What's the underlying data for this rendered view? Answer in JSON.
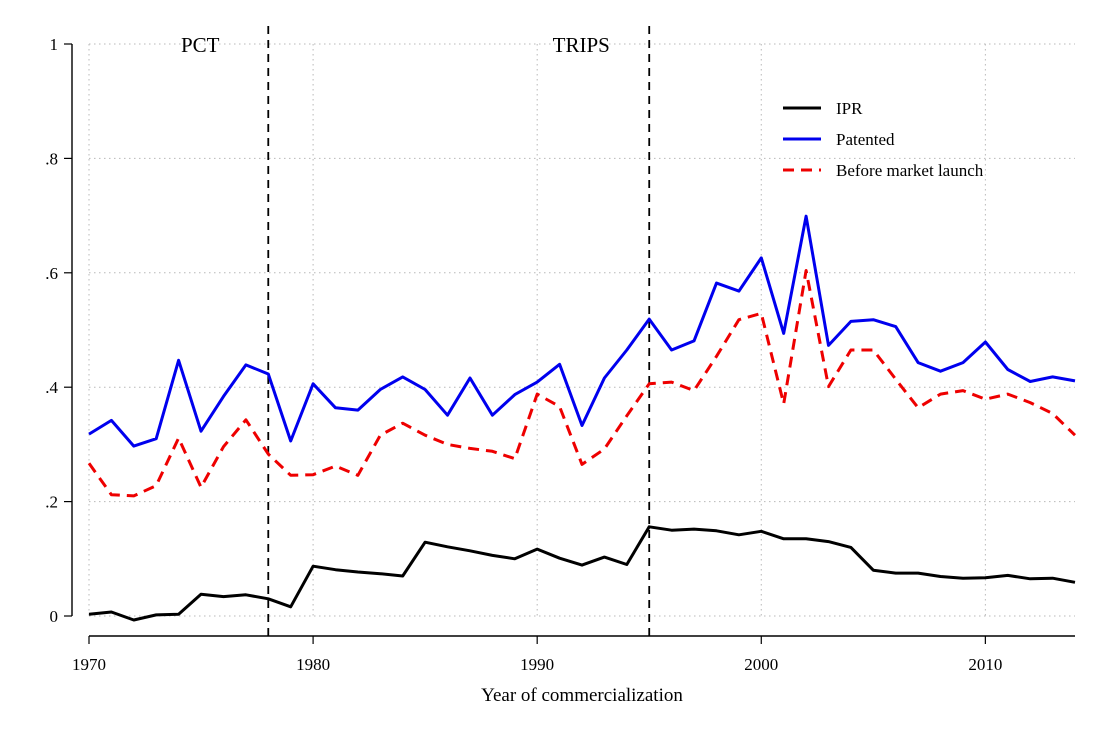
{
  "chart_data": {
    "type": "line",
    "title": "",
    "xlabel": "Year of commercialization",
    "ylabel": "",
    "xlim": [
      1970,
      2014
    ],
    "ylim": [
      0,
      1
    ],
    "xticks": [
      1970,
      1980,
      1990,
      2000,
      2010
    ],
    "xtick_labels": [
      "1970",
      "1980",
      "1990",
      "2000",
      "2010"
    ],
    "yticks": [
      0,
      0.2,
      0.4,
      0.6,
      0.8,
      1
    ],
    "ytick_labels": [
      "0",
      ".2",
      ".4",
      ".6",
      ".8",
      "1"
    ],
    "grid": true,
    "legend_position": "top-right",
    "vertical_lines": [
      {
        "x": 1978,
        "label": "PCT"
      },
      {
        "x": 1995,
        "label": "TRIPS"
      }
    ],
    "x": [
      1970,
      1971,
      1972,
      1973,
      1974,
      1975,
      1976,
      1977,
      1978,
      1979,
      1980,
      1981,
      1982,
      1983,
      1984,
      1985,
      1986,
      1987,
      1988,
      1989,
      1990,
      1991,
      1992,
      1993,
      1994,
      1995,
      1996,
      1997,
      1998,
      1999,
      2000,
      2001,
      2002,
      2003,
      2004,
      2005,
      2006,
      2007,
      2008,
      2009,
      2010,
      2011,
      2012,
      2013,
      2014
    ],
    "series": [
      {
        "name": "IPR",
        "color": "#000000",
        "style": "solid",
        "values": [
          0.003,
          0.007,
          -0.007,
          0.002,
          0.003,
          0.038,
          0.034,
          0.037,
          0.03,
          0.016,
          0.087,
          0.081,
          0.077,
          0.074,
          0.07,
          0.129,
          0.121,
          0.114,
          0.106,
          0.1,
          0.117,
          0.101,
          0.089,
          0.103,
          0.09,
          0.156,
          0.15,
          0.152,
          0.149,
          0.142,
          0.148,
          0.135,
          0.135,
          0.13,
          0.12,
          0.08,
          0.075,
          0.075,
          0.069,
          0.066,
          0.067,
          0.071,
          0.065,
          0.066,
          0.059
        ]
      },
      {
        "name": "Patented",
        "color": "#0000ee",
        "style": "solid",
        "values": [
          0.318,
          0.342,
          0.297,
          0.31,
          0.447,
          0.323,
          0.384,
          0.439,
          0.423,
          0.306,
          0.406,
          0.364,
          0.36,
          0.396,
          0.418,
          0.396,
          0.351,
          0.416,
          0.351,
          0.387,
          0.409,
          0.44,
          0.333,
          0.416,
          0.465,
          0.519,
          0.465,
          0.481,
          0.582,
          0.568,
          0.626,
          0.494,
          0.699,
          0.473,
          0.515,
          0.518,
          0.506,
          0.443,
          0.428,
          0.443,
          0.479,
          0.431,
          0.41,
          0.418,
          0.411
        ]
      },
      {
        "name": "Before market launch",
        "color": "#ee0000",
        "style": "dashed",
        "values": [
          0.267,
          0.212,
          0.21,
          0.228,
          0.311,
          0.225,
          0.296,
          0.343,
          0.283,
          0.246,
          0.247,
          0.262,
          0.246,
          0.316,
          0.337,
          0.316,
          0.3,
          0.293,
          0.288,
          0.275,
          0.388,
          0.366,
          0.265,
          0.292,
          0.35,
          0.406,
          0.409,
          0.394,
          0.454,
          0.518,
          0.529,
          0.371,
          0.604,
          0.401,
          0.465,
          0.465,
          0.414,
          0.364,
          0.388,
          0.394,
          0.379,
          0.388,
          0.373,
          0.354,
          0.316
        ]
      }
    ]
  }
}
